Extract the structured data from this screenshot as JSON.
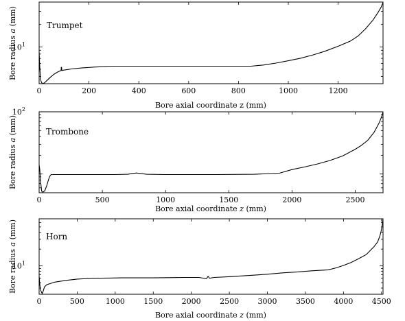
{
  "chart_data": [
    {
      "type": "line",
      "annotation": "Trumpet",
      "xlabel": "Bore axial coordinate z (mm)",
      "ylabel": "Bore radius a (mm)",
      "xscale": "linear",
      "yscale": "log",
      "xlim": [
        0,
        1380
      ],
      "ylim": [
        3.2,
        40
      ],
      "xticks": [
        0,
        200,
        400,
        600,
        800,
        1000,
        1200
      ],
      "xtick_labels": [
        "0",
        "200",
        "400",
        "600",
        "800",
        "1000",
        "1200"
      ],
      "yticks": [
        10
      ],
      "ytick_labels": [
        "10^1"
      ],
      "grid": false,
      "series": [
        {
          "x": [
            0,
            3,
            6,
            10,
            15,
            22,
            30,
            45,
            60,
            75,
            88,
            89,
            90,
            91,
            92,
            95,
            130,
            170,
            220,
            290,
            400,
            600,
            800,
            850,
            900,
            950,
            1000,
            1050,
            1100,
            1150,
            1200,
            1250,
            1280,
            1310,
            1340,
            1360,
            1372,
            1378,
            1380
          ],
          "y": [
            8.5,
            5,
            3.6,
            3.3,
            3.2,
            3.3,
            3.5,
            3.9,
            4.3,
            4.6,
            4.8,
            5.3,
            5.3,
            4.85,
            4.8,
            4.85,
            5.05,
            5.2,
            5.35,
            5.5,
            5.5,
            5.5,
            5.5,
            5.5,
            5.7,
            6.05,
            6.5,
            7.05,
            7.8,
            8.8,
            10.2,
            12,
            14,
            17.5,
            23,
            29,
            34,
            38,
            40
          ]
        }
      ]
    },
    {
      "type": "line",
      "annotation": "Trombone",
      "xlabel": "Bore axial coordinate z (mm)",
      "ylabel": "Bore radius a (mm)",
      "xscale": "linear",
      "yscale": "log",
      "xlim": [
        0,
        2720
      ],
      "ylim": [
        5,
        100
      ],
      "xticks": [
        0,
        500,
        1000,
        1500,
        2000,
        2500
      ],
      "xtick_labels": [
        "0",
        "500",
        "1000",
        "1500",
        "2000",
        "2500"
      ],
      "yticks": [
        100
      ],
      "ytick_labels": [
        "10^2"
      ],
      "grid": false,
      "series": [
        {
          "x": [
            0,
            5,
            12,
            20,
            30,
            45,
            60,
            75,
            85,
            95,
            300,
            600,
            700,
            770,
            850,
            1000,
            1400,
            1700,
            1900,
            2000,
            2100,
            2200,
            2300,
            2400,
            2500,
            2550,
            2600,
            2650,
            2690,
            2710,
            2720
          ],
          "y": [
            14,
            12,
            7.5,
            5.3,
            5.1,
            5.4,
            6.5,
            8.2,
            9.3,
            9.8,
            9.8,
            9.8,
            9.9,
            10.4,
            9.9,
            9.8,
            9.8,
            9.9,
            10.3,
            11.8,
            13,
            14.5,
            16.5,
            19.5,
            25,
            29,
            35,
            47,
            67,
            85,
            100
          ]
        }
      ]
    },
    {
      "type": "line",
      "annotation": "Horn",
      "xlabel": "Bore axial coordinate z (mm)",
      "ylabel": "Bore radius a (mm)",
      "xscale": "linear",
      "yscale": "log",
      "xlim": [
        0,
        4520
      ],
      "ylim": [
        3.1,
        70
      ],
      "xticks": [
        0,
        500,
        1000,
        1500,
        2000,
        2500,
        3000,
        3500,
        4000,
        4500
      ],
      "xtick_labels": [
        "0",
        "500",
        "1000",
        "1500",
        "2000",
        "2500",
        "3000",
        "3500",
        "4000",
        "4500"
      ],
      "yticks": [
        10
      ],
      "ytick_labels": [
        "10^1"
      ],
      "grid": false,
      "series": [
        {
          "x": [
            0,
            10,
            20,
            30,
            40,
            50,
            70,
            100,
            200,
            350,
            500,
            700,
            900,
            1100,
            1300,
            1500,
            1700,
            1900,
            2100,
            2200,
            2220,
            2240,
            2300,
            2500,
            2800,
            3000,
            3200,
            3400,
            3600,
            3800,
            3900,
            4000,
            4100,
            4200,
            4300,
            4400,
            4450,
            4480,
            4500,
            4510,
            4520
          ],
          "y": [
            6.6,
            4.5,
            3.7,
            3.4,
            3.2,
            3.4,
            4.2,
            4.6,
            5.1,
            5.5,
            5.8,
            6.0,
            6.05,
            6.1,
            6.1,
            6.1,
            6.15,
            6.2,
            6.2,
            5.9,
            6.5,
            6.0,
            6.2,
            6.4,
            6.8,
            7.1,
            7.5,
            7.8,
            8.2,
            8.5,
            9.2,
            10.2,
            11.5,
            13.5,
            16,
            22,
            27,
            35,
            45,
            55,
            70
          ]
        }
      ]
    }
  ]
}
